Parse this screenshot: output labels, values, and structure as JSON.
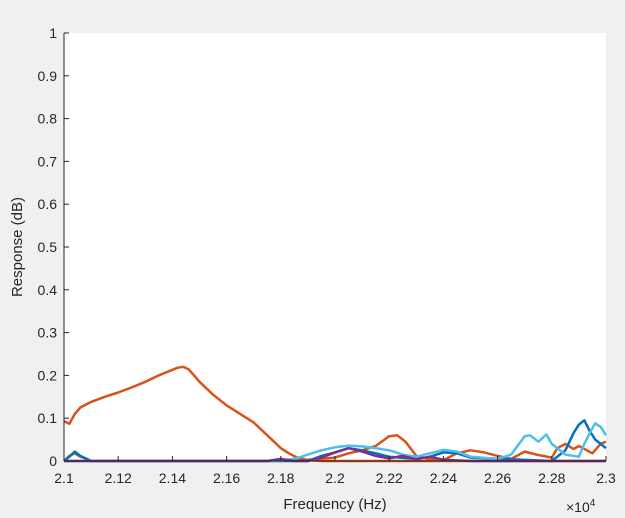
{
  "chart_data": {
    "type": "line",
    "title": "",
    "xlabel": "Frequency (Hz)",
    "ylabel": "Response (dB)",
    "xlim": [
      21000,
      23000
    ],
    "ylim": [
      0,
      1
    ],
    "x_ticks": [
      21000,
      21200,
      21400,
      21600,
      21800,
      22000,
      22200,
      22400,
      22600,
      22800,
      23000
    ],
    "x_tick_labels": [
      "2.1",
      "2.12",
      "2.14",
      "2.16",
      "2.18",
      "2.2",
      "2.22",
      "2.24",
      "2.26",
      "2.28",
      "2.3"
    ],
    "x_exponent_label": "×10",
    "x_exponent_power": "4",
    "y_ticks": [
      0,
      0.1,
      0.2,
      0.3,
      0.4,
      0.5,
      0.6,
      0.7,
      0.8,
      0.9,
      1
    ],
    "y_tick_labels": [
      "0",
      "0.1",
      "0.2",
      "0.3",
      "0.4",
      "0.5",
      "0.6",
      "0.7",
      "0.8",
      "0.9",
      "1"
    ],
    "grid": false,
    "legend": "none",
    "series": [
      {
        "color": "#D95319",
        "x": [
          21000,
          21020,
          21040,
          21060,
          21100,
          21150,
          21200,
          21250,
          21300,
          21350,
          21400,
          21420,
          21440,
          21460,
          21480,
          21500,
          21550,
          21600,
          21650,
          21700,
          21750,
          21800,
          21830,
          21860,
          21900,
          21950,
          22000,
          22050,
          22100,
          22150,
          22200,
          22230,
          22260,
          22300,
          22350,
          22400,
          22500,
          22600,
          22700,
          22800,
          22900,
          23000
        ],
        "y": [
          0.093,
          0.087,
          0.11,
          0.125,
          0.138,
          0.15,
          0.16,
          0.172,
          0.185,
          0.2,
          0.213,
          0.218,
          0.22,
          0.214,
          0.2,
          0.185,
          0.155,
          0.13,
          0.11,
          0.09,
          0.06,
          0.03,
          0.018,
          0.008,
          0.002,
          0,
          0,
          0,
          0,
          0,
          0,
          0,
          0,
          0,
          0,
          0,
          0,
          0,
          0,
          0,
          0,
          0
        ]
      },
      {
        "color": "#D95319",
        "x": [
          21000,
          21020,
          21040,
          21060,
          21080,
          21100,
          21200,
          21800,
          21900,
          22000,
          22050,
          22100,
          22150,
          22200,
          22230,
          22260,
          22300,
          22350,
          22400,
          22450,
          22500,
          22550,
          22600,
          22650,
          22700,
          22750,
          22800,
          22820,
          22850,
          22880,
          22900,
          22950,
          22980,
          23000
        ],
        "y": [
          0,
          0.012,
          0.018,
          0.01,
          0.006,
          0,
          0,
          0,
          0.003,
          0.008,
          0.018,
          0.025,
          0.035,
          0.058,
          0.06,
          0.045,
          0.012,
          0.004,
          0.002,
          0.018,
          0.025,
          0.02,
          0.012,
          0.005,
          0.022,
          0.014,
          0.008,
          0.03,
          0.04,
          0.028,
          0.035,
          0.018,
          0.04,
          0.045
        ]
      },
      {
        "color": "#0072BD",
        "x": [
          21000,
          21020,
          21040,
          21060,
          21100,
          21200,
          21800,
          21900,
          21950,
          22000,
          22050,
          22100,
          22150,
          22200,
          22300,
          22350,
          22400,
          22450,
          22500,
          22800,
          22850,
          22880,
          22900,
          22920,
          22940,
          22960,
          22980,
          23000
        ],
        "y": [
          0,
          0.01,
          0.022,
          0.012,
          0,
          0,
          0,
          0,
          0.012,
          0.02,
          0.03,
          0.025,
          0.018,
          0.01,
          0.005,
          0.01,
          0.02,
          0.018,
          0.008,
          0,
          0.025,
          0.065,
          0.085,
          0.095,
          0.07,
          0.05,
          0.04,
          0.03
        ]
      },
      {
        "color": "#4DBEEE",
        "x": [
          21000,
          21800,
          21850,
          21900,
          21950,
          22000,
          22050,
          22100,
          22150,
          22200,
          22250,
          22300,
          22350,
          22400,
          22450,
          22500,
          22600,
          22650,
          22700,
          22720,
          22750,
          22780,
          22800,
          22850,
          22900,
          22920,
          22940,
          22960,
          22980,
          23000
        ],
        "y": [
          0,
          0,
          0.005,
          0.015,
          0.025,
          0.032,
          0.036,
          0.034,
          0.03,
          0.025,
          0.015,
          0.01,
          0.018,
          0.026,
          0.022,
          0.01,
          0.005,
          0.015,
          0.058,
          0.06,
          0.045,
          0.062,
          0.04,
          0.015,
          0.01,
          0.04,
          0.065,
          0.088,
          0.08,
          0.06
        ]
      },
      {
        "color": "#7E2F8E",
        "x": [
          21000,
          21750,
          21800,
          21850,
          21900,
          21950,
          22000,
          22050,
          22100,
          22150,
          22200,
          22250,
          22300,
          22350,
          22400,
          22500,
          23000
        ],
        "y": [
          0,
          0,
          0.005,
          0,
          0,
          0.008,
          0.02,
          0.03,
          0.022,
          0.012,
          0.006,
          0.012,
          0.004,
          0.01,
          0.003,
          0,
          0
        ]
      }
    ]
  }
}
